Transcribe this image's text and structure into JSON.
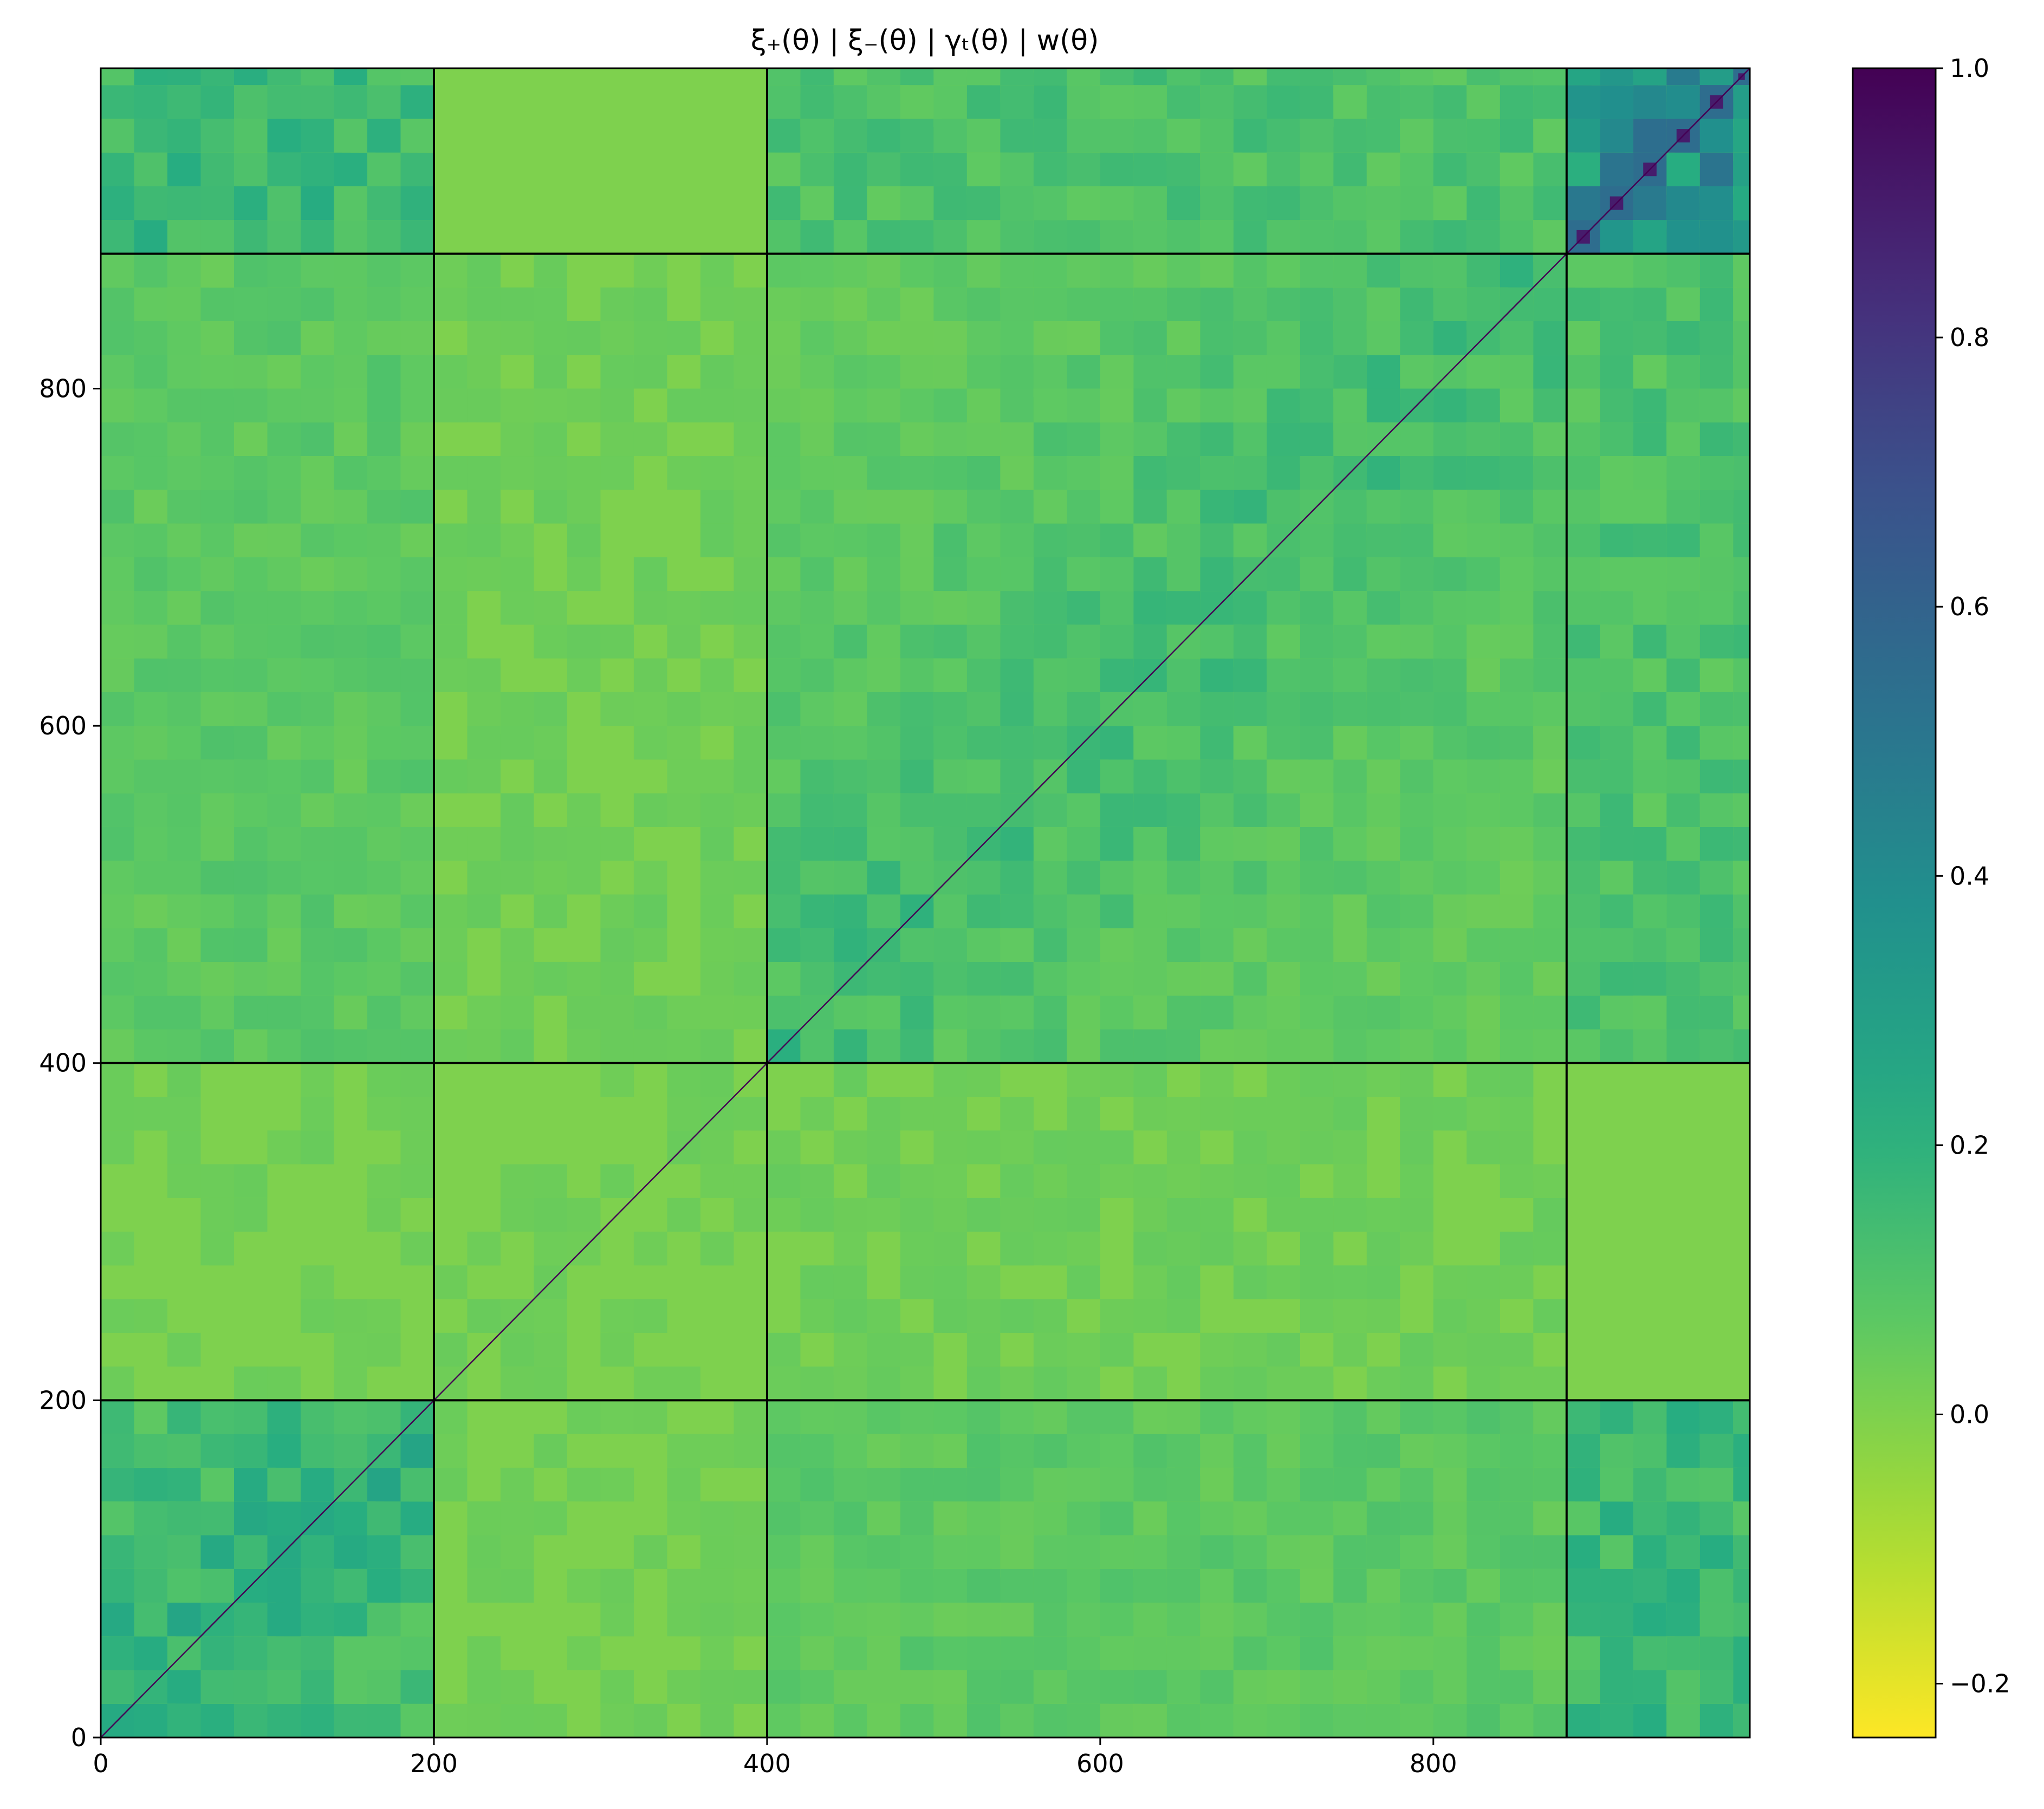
{
  "chart_data": {
    "type": "heatmap",
    "title": "ξ₊(θ) | ξ₋(θ) | γₜ(θ) | w(θ)",
    "xlabel": "",
    "ylabel": "",
    "matrix_size": 990,
    "xlim": [
      0,
      990
    ],
    "ylim": [
      0,
      990
    ],
    "x_ticks": [
      0,
      200,
      400,
      600,
      800
    ],
    "y_ticks": [
      0,
      200,
      400,
      600,
      800
    ],
    "block_boundaries": [
      200,
      400,
      880
    ],
    "colorbar": {
      "colormap": "viridis_r",
      "vmin": -0.24,
      "vmax": 1.0,
      "ticks": [
        -0.2,
        0.0,
        0.2,
        0.4,
        0.6,
        0.8,
        1.0
      ],
      "tick_labels": [
        "−0.2",
        "0.0",
        "0.2",
        "0.4",
        "0.6",
        "0.8",
        "1.0"
      ]
    },
    "background_value": 0.0,
    "blocks": [
      {
        "name": "ξ₊(θ)",
        "start": 0,
        "end": 200,
        "bin_size": 20
      },
      {
        "name": "ξ₋(θ)",
        "start": 200,
        "end": 400,
        "bin_size": 20
      },
      {
        "name": "γₜ(θ)",
        "start": 400,
        "end": 880,
        "bin_size": 20
      },
      {
        "name": "w(θ)",
        "start": 880,
        "end": 990,
        "bin_size": 20
      }
    ],
    "diagonal_value": 1.0
  }
}
